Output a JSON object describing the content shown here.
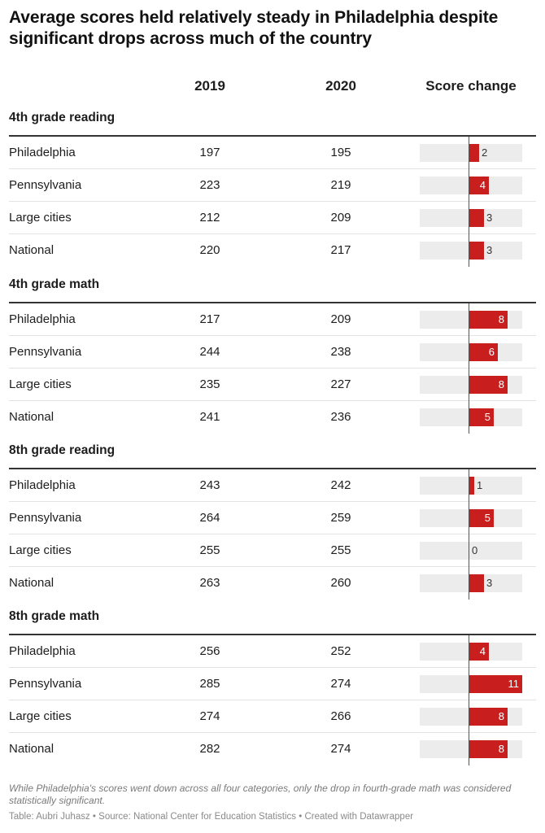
{
  "title": "Average scores held relatively steady in Philadelphia despite significant drops across much of the country",
  "columns": {
    "year_2019": "2019",
    "year_2020": "2020",
    "score_change": "Score change"
  },
  "colors": {
    "bar": "#c81e1e",
    "bar_background": "#ececec",
    "rule": "#333333"
  },
  "chart_data": {
    "type": "table",
    "title": "Average scores held relatively steady in Philadelphia despite significant drops across much of the country",
    "columns": [
      "2019",
      "2020",
      "Score change"
    ],
    "score_change_range": [
      0,
      11
    ],
    "groups": [
      {
        "name": "4th grade reading",
        "rows": [
          {
            "label": "Philadelphia",
            "y2019": "197",
            "y2020": "195",
            "change": 2
          },
          {
            "label": "Pennsylvania",
            "y2019": "223",
            "y2020": "219",
            "change": 4
          },
          {
            "label": "Large cities",
            "y2019": "212",
            "y2020": "209",
            "change": 3
          },
          {
            "label": "National",
            "y2019": "220",
            "y2020": "217",
            "change": 3
          }
        ]
      },
      {
        "name": "4th grade math",
        "rows": [
          {
            "label": "Philadelphia",
            "y2019": "217",
            "y2020": "209",
            "change": 8
          },
          {
            "label": "Pennsylvania",
            "y2019": "244",
            "y2020": "238",
            "change": 6
          },
          {
            "label": "Large cities",
            "y2019": "235",
            "y2020": "227",
            "change": 8
          },
          {
            "label": "National",
            "y2019": "241",
            "y2020": "236",
            "change": 5
          }
        ]
      },
      {
        "name": "8th grade reading",
        "rows": [
          {
            "label": "Philadelphia",
            "y2019": "243",
            "y2020": "242",
            "change": 1
          },
          {
            "label": "Pennsylvania",
            "y2019": "264",
            "y2020": "259",
            "change": 5
          },
          {
            "label": "Large cities",
            "y2019": "255",
            "y2020": "255",
            "change": 0
          },
          {
            "label": "National",
            "y2019": "263",
            "y2020": "260",
            "change": 3
          }
        ]
      },
      {
        "name": "8th grade math",
        "rows": [
          {
            "label": "Philadelphia",
            "y2019": "256",
            "y2020": "252",
            "change": 4
          },
          {
            "label": "Pennsylvania",
            "y2019": "285",
            "y2020": "274",
            "change": 11
          },
          {
            "label": "Large cities",
            "y2019": "274",
            "y2020": "266",
            "change": 8
          },
          {
            "label": "National",
            "y2019": "282",
            "y2020": "274",
            "change": 8
          }
        ]
      }
    ]
  },
  "notes": "While Philadelphia's scores went down across all four categories, only the drop in fourth-grade math was considered statistically significant.",
  "footer": "Table: Aubri Juhasz • Source: National Center for Education Statistics • Created with Datawrapper"
}
